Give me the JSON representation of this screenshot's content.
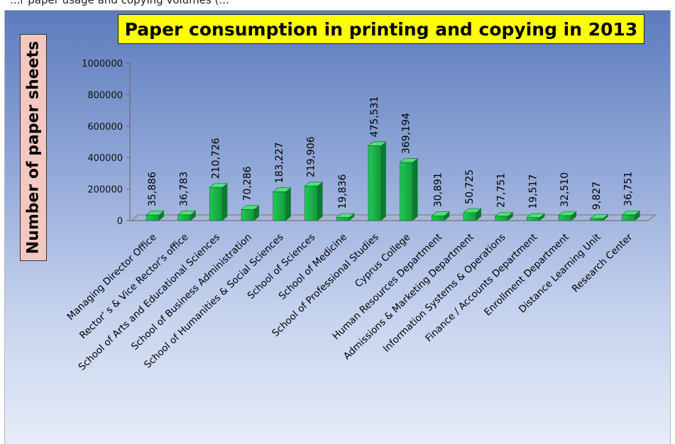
{
  "page": {
    "top_caption": "...r paper usage and copying volumes (..."
  },
  "chart_data": {
    "type": "bar",
    "title": "Paper consumption  in printing and copying in 2013",
    "ylabel": "Number of paper sheets",
    "xlabel": "",
    "ylim": [
      0,
      1000000
    ],
    "yticks": [
      "1000000",
      "800000",
      "600000",
      "400000",
      "200000",
      "0"
    ],
    "yticks_values": [
      1000000,
      800000,
      600000,
      400000,
      200000,
      0
    ],
    "categories": [
      "Managing Director Office",
      "Rector' s & Vice Rector's office",
      "School of Arts and Educational Sciences",
      "School of Business Administration",
      "School of Humanities & Social Sciences",
      "School of Sciences",
      "School of Medicine",
      "School of Professional Studies",
      "Cyprus College",
      "Human Resources Department",
      "Admissions & Marketing Department",
      "Information Systems & Operations",
      "Finance / Accounts Department",
      "Enrollment Department",
      "Distance Learning Unit",
      "Research Center"
    ],
    "values": [
      35886,
      36783,
      210726,
      70286,
      183227,
      219906,
      19836,
      475531,
      369194,
      30891,
      50725,
      27751,
      19517,
      32510,
      9827,
      36751
    ],
    "value_labels": [
      "35,886",
      "36,783",
      "210,726",
      "70,286",
      "183,227",
      "219,906",
      "19,836",
      "475,531",
      "369,194",
      "30,891",
      "50,725",
      "27,751",
      "19,517",
      "32,510",
      "9,827",
      "36,751"
    ],
    "bar_color": "#1db54a",
    "grid": false,
    "legend": "none"
  }
}
